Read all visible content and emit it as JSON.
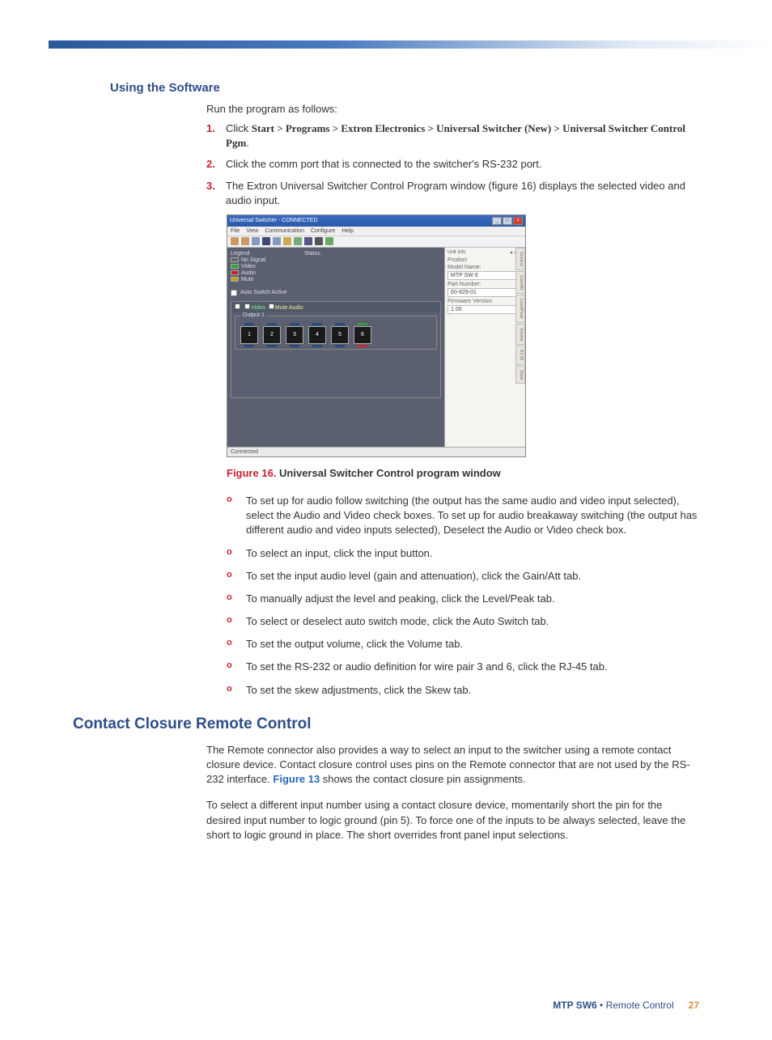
{
  "headings": {
    "h3": "Using the Software",
    "h2": "Contact Closure Remote Control"
  },
  "intro": "Run the program as follows:",
  "steps": [
    {
      "num": "1.",
      "pre": "Click ",
      "bold": "Start > Programs > Extron Electronics > Universal Switcher (New) > Universal Switcher Control Pgm",
      "post": "."
    },
    {
      "num": "2.",
      "text": "Click the comm port that is connected to the switcher's RS-232 port."
    },
    {
      "num": "3.",
      "text": "The Extron Universal Switcher Control Program window (figure 16) displays the selected video and audio input."
    }
  ],
  "screenshot": {
    "title": "Universal Switcher - CONNECTED",
    "menus": [
      "File",
      "View",
      "Communication",
      "Configure",
      "Help"
    ],
    "legend": {
      "title": "Legend",
      "items": [
        {
          "color": "#666666",
          "label": "No Signal"
        },
        {
          "color": "#30a030",
          "label": "Video"
        },
        {
          "color": "#c02020",
          "label": "Audio"
        },
        {
          "color": "#c0a020",
          "label": "Mute"
        }
      ]
    },
    "status_label": "Status",
    "auto_switch": "Auto Switch Active",
    "tab_checks": [
      {
        "class": "red",
        "label": ""
      },
      {
        "class": "grn",
        "label": "Video"
      },
      {
        "class": "yel",
        "label": "Mute Audio"
      }
    ],
    "output_group": "Output 1",
    "inputs": [
      "1",
      "2",
      "3",
      "4",
      "5",
      "6"
    ],
    "side_panel": {
      "title": "Unit Info",
      "fields": [
        {
          "label": "Product",
          "value": ""
        },
        {
          "label": "Model Name:",
          "value": "MTP SW 6"
        },
        {
          "label": "Part Number:",
          "value": "60-829-01"
        },
        {
          "label": "Firmware Version:",
          "value": "1.00"
        }
      ]
    },
    "vtabs": [
      "General",
      "Gain/Att",
      "Level/Peak",
      "Volume",
      "RJ-45",
      "Skew"
    ],
    "statusbar": "Connected"
  },
  "figure": {
    "num": "Figure 16.",
    "text": " Universal Switcher Control program window"
  },
  "subitems": [
    "To set up for audio follow switching (the output has the same audio and video input selected), select the Audio and Video check boxes.  To set up for audio breakaway switching (the output has different audio and video inputs selected), Deselect the Audio or Video check box.",
    "To select an input, click the input button.",
    "To set the input audio level (gain and attenuation), click the Gain/Att tab.",
    "To manually adjust the level and peaking, click the Level/Peak tab.",
    "To select or deselect auto switch mode, click the Auto Switch tab.",
    "To set the output volume, click the Volume tab.",
    "To set the RS-232 or audio definition for wire pair 3 and 6, click the RJ-45 tab.",
    "To set the skew adjustments, click the Skew tab."
  ],
  "contact_paras": [
    {
      "pre": "The Remote connector also provides a way to select an input to the switcher using a remote contact closure device.  Contact closure control uses pins on the Remote connector that are not used by the RS-232 interface.  ",
      "link": "Figure 13",
      "post": " shows the contact closure pin assignments."
    },
    {
      "text": "To select a different input number using a contact closure device, momentarily short the pin for the desired input number to logic ground (pin 5).  To force one of the inputs to be always selected, leave the short to logic ground in place.  The short overrides front panel input selections."
    }
  ],
  "footer": {
    "product": "MTP SW6",
    "sep": " • ",
    "section": "Remote Control",
    "page": "27"
  }
}
